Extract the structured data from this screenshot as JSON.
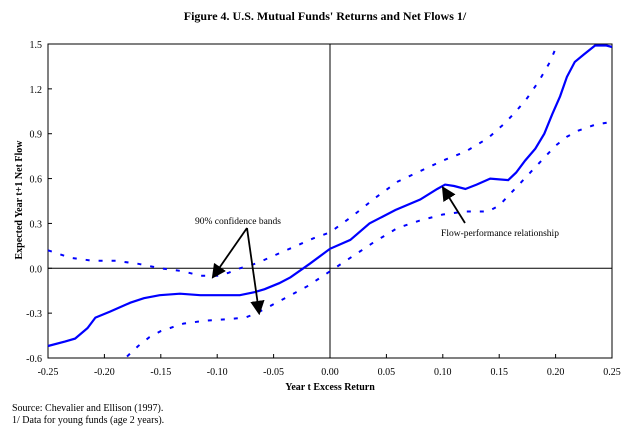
{
  "chart_data": {
    "type": "line",
    "title": "Figure 4. U.S. Mutual Funds' Returns and Net Flows 1/",
    "xlabel": "Year t Excess Return",
    "ylabel": "Expected Year t+1 Net Flow",
    "xlim": [
      -0.25,
      0.25
    ],
    "ylim": [
      -0.6,
      1.5
    ],
    "x_ticks": [
      "-0.25",
      "-0.20",
      "-0.15",
      "-0.10",
      "-0.05",
      "0.00",
      "0.05",
      "0.10",
      "0.15",
      "0.20",
      "0.25"
    ],
    "x_tick_values": [
      -0.25,
      -0.2,
      -0.15,
      -0.1,
      -0.05,
      0.0,
      0.05,
      0.1,
      0.15,
      0.2,
      0.25
    ],
    "y_ticks": [
      "1.5",
      "1.2",
      "0.9",
      "0.6",
      "0.3",
      "0.0",
      "-0.3",
      "-0.6"
    ],
    "y_tick_values": [
      1.5,
      1.2,
      0.9,
      0.6,
      0.3,
      0.0,
      -0.3,
      -0.6
    ],
    "grid": false,
    "series": [
      {
        "name": "Flow-performance relationship",
        "style": "solid",
        "color": "#0000ff",
        "x": [
          -0.25,
          -0.235,
          -0.226,
          -0.215,
          -0.208,
          -0.195,
          -0.177,
          -0.165,
          -0.151,
          -0.133,
          -0.115,
          -0.098,
          -0.08,
          -0.067,
          -0.058,
          -0.045,
          -0.035,
          -0.018,
          0.0,
          0.018,
          0.035,
          0.058,
          0.08,
          0.095,
          0.102,
          0.11,
          0.12,
          0.13,
          0.142,
          0.158,
          0.165,
          0.173,
          0.182,
          0.19,
          0.197,
          0.204,
          0.21,
          0.217,
          0.225,
          0.235,
          0.245,
          0.25
        ],
        "y": [
          -0.52,
          -0.49,
          -0.47,
          -0.4,
          -0.33,
          -0.29,
          -0.23,
          -0.2,
          -0.18,
          -0.17,
          -0.18,
          -0.18,
          -0.18,
          -0.16,
          -0.14,
          -0.1,
          -0.06,
          0.03,
          0.13,
          0.19,
          0.3,
          0.39,
          0.46,
          0.53,
          0.56,
          0.55,
          0.53,
          0.56,
          0.6,
          0.59,
          0.64,
          0.72,
          0.8,
          0.9,
          1.03,
          1.15,
          1.28,
          1.38,
          1.43,
          1.49,
          1.49,
          1.48
        ]
      },
      {
        "name": "Upper 90% confidence band",
        "style": "dotted",
        "color": "#0000ff",
        "x": [
          -0.25,
          -0.23,
          -0.21,
          -0.19,
          -0.17,
          -0.15,
          -0.13,
          -0.115,
          -0.1,
          -0.09,
          -0.08,
          -0.07,
          -0.06,
          -0.045,
          -0.03,
          -0.015,
          0.0,
          0.02,
          0.04,
          0.06,
          0.08,
          0.1,
          0.12,
          0.14,
          0.155,
          0.165,
          0.175,
          0.185,
          0.195,
          0.2
        ],
        "y": [
          0.12,
          0.07,
          0.05,
          0.05,
          0.03,
          0.0,
          -0.02,
          -0.05,
          -0.05,
          -0.03,
          0.0,
          0.02,
          0.05,
          0.1,
          0.15,
          0.2,
          0.24,
          0.35,
          0.47,
          0.58,
          0.65,
          0.72,
          0.78,
          0.87,
          0.97,
          1.05,
          1.14,
          1.25,
          1.38,
          1.47
        ]
      },
      {
        "name": "Lower 90% confidence band",
        "style": "dotted",
        "color": "#0000ff",
        "x": [
          -0.18,
          -0.17,
          -0.16,
          -0.15,
          -0.13,
          -0.11,
          -0.09,
          -0.075,
          -0.065,
          -0.055,
          -0.04,
          -0.02,
          0.0,
          0.02,
          0.04,
          0.06,
          0.08,
          0.1,
          0.12,
          0.14,
          0.15,
          0.16,
          0.17,
          0.18,
          0.19,
          0.2,
          0.21,
          0.22,
          0.235,
          0.25
        ],
        "y": [
          -0.59,
          -0.52,
          -0.46,
          -0.42,
          -0.37,
          -0.35,
          -0.34,
          -0.33,
          -0.3,
          -0.26,
          -0.2,
          -0.12,
          -0.02,
          0.08,
          0.18,
          0.27,
          0.32,
          0.36,
          0.38,
          0.38,
          0.42,
          0.5,
          0.58,
          0.66,
          0.74,
          0.82,
          0.88,
          0.92,
          0.96,
          0.98
        ]
      }
    ],
    "annotations": [
      {
        "text": "90% confidence bands",
        "points_to": [
          [
            -0.103,
            -0.05
          ],
          [
            -0.063,
            -0.29
          ]
        ]
      },
      {
        "text": "Flow-performance relationship",
        "points_to": [
          [
            0.1,
            0.55
          ]
        ]
      }
    ],
    "notes": [
      "Source:  Chevalier and Ellison (1997).",
      "1/ Data for young funds (age 2 years)."
    ]
  }
}
